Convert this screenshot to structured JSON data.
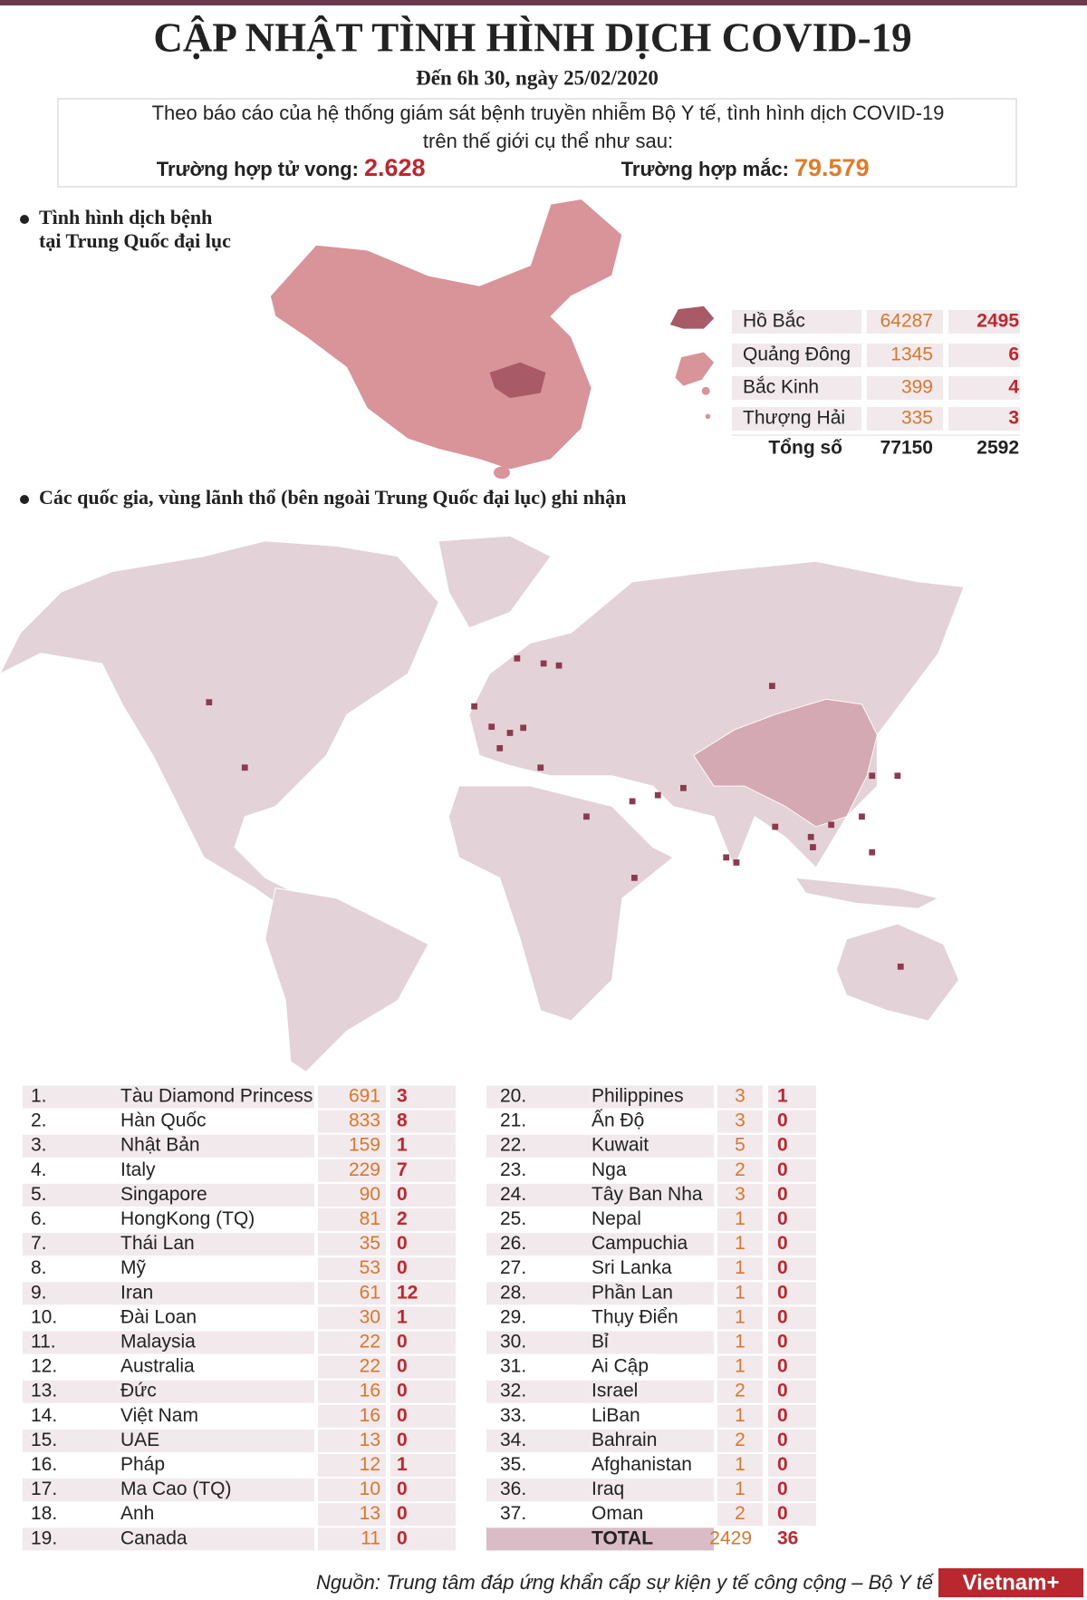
{
  "header": {
    "title": "CẬP NHẬT TÌNH HÌNH DỊCH COVID-19",
    "subtitle": "Đến 6h 30, ngày 25/02/2020"
  },
  "summary": {
    "text_line1": "Theo báo cáo của hệ thống giám sát bệnh truyền nhiễm Bộ Y tế, tình hình dịch COVID-19",
    "text_line2": "trên thế giới cụ thể như sau:",
    "deaths_label": "Trường hợp tử vong:",
    "deaths_value": "2.628",
    "cases_label": "Trường hợp mắc:",
    "cases_value": "79.579"
  },
  "china": {
    "heading_line1": "Tình hình dịch bệnh",
    "heading_line2": "tại Trung Quốc đại lục",
    "rows": [
      [
        "Hồ Bắc",
        64287,
        2495
      ],
      [
        "Quảng Đông",
        1345,
        6
      ],
      [
        "Bắc Kinh",
        399,
        4
      ],
      [
        "Thượng Hải",
        335,
        3
      ]
    ],
    "total": [
      "Tổng số",
      77150,
      2592
    ]
  },
  "world": {
    "heading": "Các quốc gia, vùng lãnh thổ (bên ngoài Trung Quốc đại lục) ghi nhận",
    "rows": [
      [
        "1.",
        "Tàu Diamond Princess",
        691,
        3
      ],
      [
        "2.",
        "Hàn Quốc",
        833,
        8
      ],
      [
        "3.",
        "Nhật Bản",
        159,
        1
      ],
      [
        "4.",
        "Italy",
        229,
        7
      ],
      [
        "5.",
        "Singapore",
        90,
        0
      ],
      [
        "6.",
        "HongKong (TQ)",
        81,
        2
      ],
      [
        "7.",
        "Thái Lan",
        35,
        0
      ],
      [
        "8.",
        "Mỹ",
        53,
        0
      ],
      [
        "9.",
        "Iran",
        61,
        12
      ],
      [
        "10.",
        "Đài Loan",
        30,
        1
      ],
      [
        "11.",
        "Malaysia",
        22,
        0
      ],
      [
        "12.",
        "Australia",
        22,
        0
      ],
      [
        "13.",
        "Đức",
        16,
        0
      ],
      [
        "14.",
        "Việt Nam",
        16,
        0
      ],
      [
        "15.",
        "UAE",
        13,
        0
      ],
      [
        "16.",
        "Pháp",
        12,
        1
      ],
      [
        "17.",
        "Ma Cao (TQ)",
        10,
        0
      ],
      [
        "18.",
        "Anh",
        13,
        0
      ],
      [
        "19.",
        "Canada",
        11,
        0
      ],
      [
        "20.",
        "Philippines",
        3,
        1
      ],
      [
        "21.",
        "Ấn Độ",
        3,
        0
      ],
      [
        "22.",
        "Kuwait",
        5,
        0
      ],
      [
        "23.",
        "Nga",
        2,
        0
      ],
      [
        "24.",
        "Tây Ban Nha",
        3,
        0
      ],
      [
        "25.",
        "Nepal",
        1,
        0
      ],
      [
        "26.",
        "Campuchia",
        1,
        0
      ],
      [
        "27.",
        "Sri Lanka",
        1,
        0
      ],
      [
        "28.",
        "Phần Lan",
        1,
        0
      ],
      [
        "29.",
        "Thụy Điển",
        1,
        0
      ],
      [
        "30.",
        "Bỉ",
        1,
        0
      ],
      [
        "31.",
        "Ai Cập",
        1,
        0
      ],
      [
        "32.",
        "Israel",
        2,
        0
      ],
      [
        "33.",
        "LiBan",
        1,
        0
      ],
      [
        "34.",
        "Bahrain",
        2,
        0
      ],
      [
        "35.",
        "Afghanistan",
        1,
        0
      ],
      [
        "36.",
        "Iraq",
        1,
        0
      ],
      [
        "37.",
        "Oman",
        2,
        0
      ]
    ],
    "total": [
      "TOTAL",
      2429,
      36
    ]
  },
  "footer": {
    "source": "Nguồn: Trung tâm đáp ứng khẩn cấp sự kiện y tế công cộng – Bộ Y tế",
    "logo": "Vietnam+"
  }
}
